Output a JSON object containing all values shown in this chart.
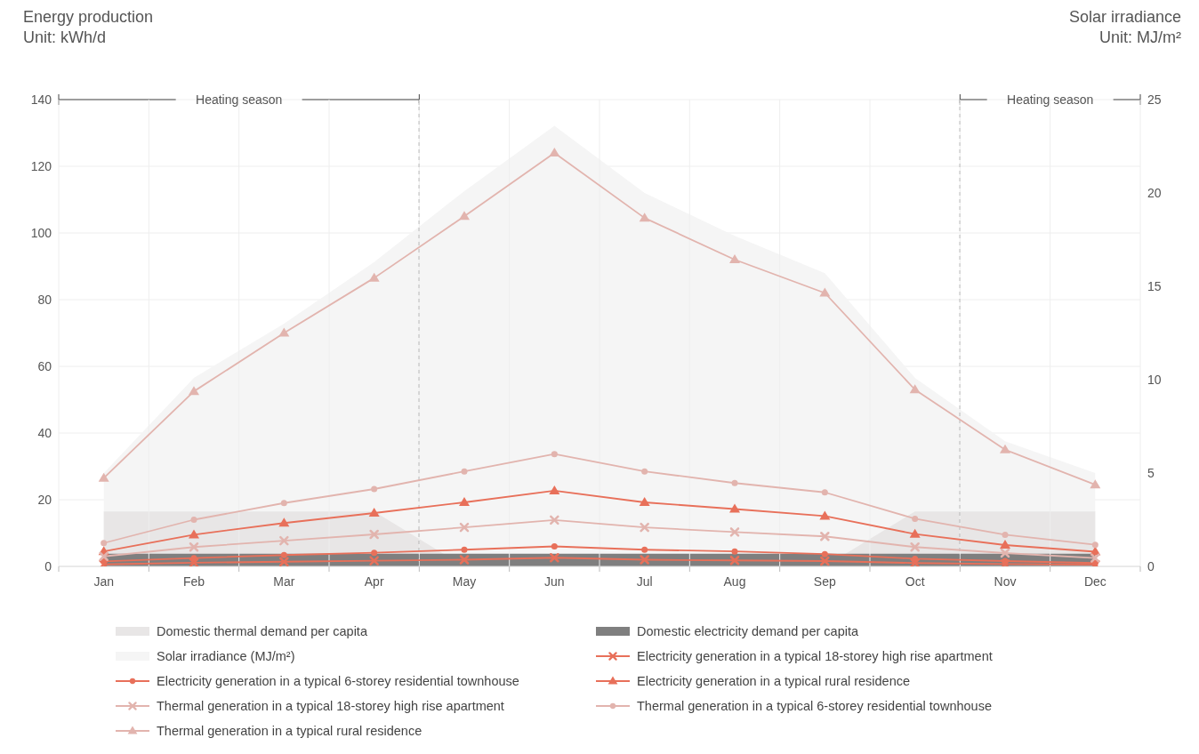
{
  "chart_data": {
    "type": "line",
    "ylabel": "Energy production\nUnit: kWh/d",
    "y2label": "Solar irradiance\nUnit: MJ/m²",
    "categories": [
      "Jan",
      "Feb",
      "Mar",
      "Apr",
      "May",
      "Jun",
      "Jul",
      "Aug",
      "Sep",
      "Oct",
      "Nov",
      "Dec"
    ],
    "annotations": [
      "Heating season",
      "Heating season"
    ],
    "ylim": [
      0,
      140
    ],
    "yticks": [
      0,
      20,
      40,
      60,
      80,
      100,
      120,
      140
    ],
    "y2lim": [
      0,
      25
    ],
    "y2ticks": [
      0,
      5,
      10,
      15,
      20,
      25
    ],
    "grid": true,
    "legend": "bottom",
    "series": [
      {
        "name": "Domestic thermal demand per capita",
        "type": "area",
        "color": "#e8e6e6",
        "values": [
          16.5,
          16.5,
          16.5,
          16.5,
          0,
          0,
          0,
          0,
          0,
          16.5,
          16.5,
          16.5
        ]
      },
      {
        "name": "Domestic electricity demand per capita",
        "type": "area",
        "color": "#7f7f7f",
        "values": [
          3.8,
          3.8,
          3.8,
          3.8,
          3.8,
          3.8,
          3.8,
          3.8,
          3.8,
          3.8,
          3.8,
          3.8
        ]
      },
      {
        "name": "Solar irradiance (MJ/m²)",
        "type": "area",
        "axis": "y2",
        "color": "#f5f5f5",
        "values": [
          5.0,
          10.1,
          13.0,
          16.3,
          20.1,
          23.6,
          20.0,
          17.7,
          15.7,
          10.1,
          6.7,
          5.0
        ]
      },
      {
        "name": "Electricity generation in a typical 18-storey high rise apartment",
        "type": "line",
        "marker": "cross",
        "color": "#e8705a",
        "values": [
          0.6,
          1.1,
          1.4,
          1.7,
          2.0,
          2.6,
          2.0,
          1.8,
          1.6,
          1.0,
          0.7,
          0.5
        ]
      },
      {
        "name": "Electricity generation in a typical 6-storey residential townhouse",
        "type": "line",
        "marker": "circle",
        "color": "#e8705a",
        "values": [
          1.5,
          2.5,
          3.4,
          4.1,
          5.0,
          6.0,
          5.0,
          4.5,
          3.7,
          2.3,
          1.6,
          1.0
        ]
      },
      {
        "name": "Electricity generation in a typical rural residence",
        "type": "line",
        "marker": "triangle",
        "color": "#e8705a",
        "values": [
          4.5,
          9.5,
          13,
          16,
          19.2,
          22.7,
          19.2,
          17.2,
          15.1,
          9.7,
          6.4,
          4.4
        ]
      },
      {
        "name": "Thermal generation in a typical 18-storey high rise apartment",
        "type": "line",
        "marker": "cross",
        "color": "#e2b4ae",
        "values": [
          3,
          5.8,
          7.7,
          9.6,
          11.7,
          13.9,
          11.7,
          10.3,
          9.0,
          5.8,
          4,
          2.5
        ]
      },
      {
        "name": "Thermal generation in a typical 6-storey residential townhouse",
        "type": "line",
        "marker": "circle",
        "color": "#e2b4ae",
        "values": [
          7,
          14,
          19,
          23.2,
          28.5,
          33.7,
          28.5,
          25,
          22.2,
          14.3,
          9.5,
          6.5
        ]
      },
      {
        "name": "Thermal generation in a typical rural residence",
        "type": "line",
        "marker": "triangle",
        "color": "#e2b4ae",
        "values": [
          26.5,
          52.5,
          70,
          86.5,
          105,
          124,
          104.5,
          92,
          82,
          53,
          35,
          24.5
        ]
      }
    ]
  }
}
